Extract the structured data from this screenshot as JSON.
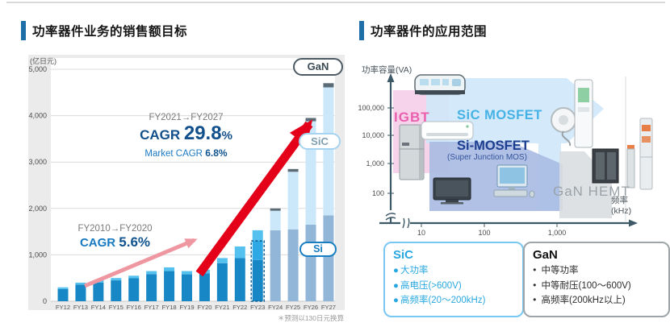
{
  "left": {
    "title": "功率器件业务的销售额目标",
    "unit_label": "(亿日元)",
    "footnote": "＊预测以130日元换算",
    "annotations": {
      "early_range": "FY2010→FY2020",
      "early_cagr_label": "CAGR",
      "early_cagr_value": "5.6%",
      "late_range": "FY2021→FY2027",
      "late_cagr_label": "CAGR",
      "late_cagr_value": "29.8",
      "late_cagr_pct": "%",
      "market_label": "Market CAGR",
      "market_value": "6.8%"
    }
  },
  "right": {
    "title": "功率器件的应用范围",
    "ylabel": "功率容量(VA)",
    "xlabel_line1": "频率",
    "xlabel_line2": "(kHz)",
    "regions": {
      "igbt": "IGBT",
      "sic": "SiC MOSFET",
      "si": "Si-MOSFET",
      "si_sub": "(Super Junction MOS)",
      "gan": "GaN HEMT"
    },
    "icons": [
      "train",
      "refrigerator",
      "air-conditioner",
      "ev-charger",
      "tv",
      "desktop-pc",
      "server-rack",
      "base-station"
    ],
    "sic_box": {
      "title": "SiC",
      "items": [
        "大功率",
        "高电压(>600V)",
        "高频率(20〜200kHz)"
      ]
    },
    "gan_box": {
      "title": "GaN",
      "items": [
        "中等功率",
        "中等耐压(100〜600V)",
        "高频率(200kHz以上)"
      ]
    }
  },
  "chart_data": [
    {
      "type": "bar",
      "title": "功率器件业务的销售额目标",
      "unit": "亿日元",
      "stacked": true,
      "ylim": [
        0,
        5000
      ],
      "y_ticks": [
        0,
        1000,
        2000,
        3000,
        4000,
        5000
      ],
      "y_tick_labels": [
        "0",
        "1,000",
        "2,000",
        "3,000",
        "4,000",
        "5,000"
      ],
      "series_labels": [
        "GaN",
        "SiC",
        "Si"
      ],
      "segment_colors": {
        "mid": "#1787c5",
        "bright": "#2fa9e5",
        "light": "#54c1ef",
        "steel": "#92b6d7",
        "pale": "#cbe7fa",
        "gan": "#5c6c76"
      },
      "bars": [
        {
          "label": "FY12",
          "segments": [
            [
              "mid",
              265
            ],
            [
              "light",
              35
            ]
          ]
        },
        {
          "label": "FY13",
          "segments": [
            [
              "mid",
              360
            ],
            [
              "light",
              40
            ]
          ]
        },
        {
          "label": "FY14",
          "segments": [
            [
              "mid",
              405
            ],
            [
              "light",
              45
            ]
          ]
        },
        {
          "label": "FY15",
          "segments": [
            [
              "mid",
              450
            ],
            [
              "light",
              50
            ]
          ]
        },
        {
          "label": "FY16",
          "segments": [
            [
              "mid",
              495
            ],
            [
              "light",
              55
            ]
          ]
        },
        {
          "label": "FY17",
          "segments": [
            [
              "mid",
              585
            ],
            [
              "light",
              65
            ]
          ]
        },
        {
          "label": "FY18",
          "segments": [
            [
              "mid",
              650
            ],
            [
              "light",
              80
            ]
          ]
        },
        {
          "label": "FY19",
          "segments": [
            [
              "mid",
              580
            ],
            [
              "light",
              70
            ]
          ]
        },
        {
          "label": "FY20",
          "segments": [
            [
              "mid",
              600
            ],
            [
              "light",
              80
            ]
          ]
        },
        {
          "label": "FY21",
          "segments": [
            [
              "mid",
              820
            ],
            [
              "light",
              110
            ]
          ]
        },
        {
          "label": "FY22",
          "segments": [
            [
              "mid",
              930
            ],
            [
              "light",
              250
            ]
          ]
        },
        {
          "label": "FY23",
          "segments": [
            [
              "mid",
              890
            ],
            [
              "bright",
              410
            ],
            [
              "light",
              230
            ]
          ],
          "dashed_to": 1300
        },
        {
          "label": "FY24",
          "segments": [
            [
              "steel",
              1530
            ],
            [
              "pale",
              420
            ],
            [
              "gan",
              50
            ]
          ]
        },
        {
          "label": "FY25",
          "segments": [
            [
              "steel",
              1550
            ],
            [
              "pale",
              1240
            ],
            [
              "gan",
              60
            ]
          ]
        },
        {
          "label": "FY26",
          "segments": [
            [
              "steel",
              1650
            ],
            [
              "pale",
              2230
            ],
            [
              "gan",
              70
            ]
          ]
        },
        {
          "label": "FY27",
          "segments": [
            [
              "steel",
              1850
            ],
            [
              "pale",
              2760
            ],
            [
              "gan",
              90
            ]
          ]
        }
      ],
      "annotations": [
        "FY2010→FY2020 CAGR 5.6%",
        "FY2021→FY2027 CAGR 29.8%",
        "Market CAGR 6.8%"
      ],
      "footnote": "＊预测以130日元换算"
    },
    {
      "type": "diagram",
      "title": "功率器件的应用范围",
      "xlabel": "频率(kHz)",
      "ylabel": "功率容量(VA)",
      "x_scale": "log",
      "y_scale": "log",
      "x_tick_labels": [
        "10",
        "100",
        "1,000"
      ],
      "y_tick_labels": [
        "100,000",
        "10,000",
        "1,000",
        "100"
      ],
      "regions": [
        {
          "name": "IGBT",
          "approx_x_kHz": "<20",
          "approx_y_VA": "500〜300,000",
          "color": "#f5cfe9"
        },
        {
          "name": "SiC MOSFET",
          "approx_x_kHz": "10〜1,000",
          "approx_y_VA": "2,000〜500,000",
          "color": "#cfe8fa"
        },
        {
          "name": "Si-MOSFET (Super Junction MOS)",
          "approx_x_kHz": "10〜1,000",
          "approx_y_VA": "100〜10,000",
          "color": "#a9bce3"
        },
        {
          "name": "GaN HEMT",
          "approx_x_kHz": "300〜3,000",
          "approx_y_VA": "<2,000",
          "color": "#dadde0"
        }
      ],
      "applications": [
        "列车",
        "冰箱",
        "空调",
        "EV充电桩",
        "电视",
        "电脑",
        "服务器",
        "基站"
      ]
    }
  ]
}
